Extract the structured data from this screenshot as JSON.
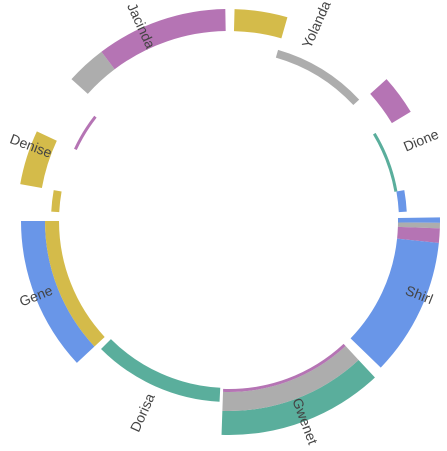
{
  "chart_data": {
    "type": "chord-ring",
    "title": "",
    "colors": {
      "yellow": "#d4bb4a",
      "gray": "#adadad",
      "purple": "#b574b4",
      "teal": "#5aae9c",
      "blue": "#6996e8"
    },
    "nodes": [
      {
        "name": "Yolanda",
        "label": "Yolanda",
        "arc_deg": [
          1.5,
          47
        ],
        "segments": [
          {
            "from_deg": 1.5,
            "to_deg": 16,
            "color": "yellow",
            "layer": "outer"
          },
          {
            "from_deg": 16,
            "to_deg": 47,
            "color": "gray",
            "layer": "inner"
          }
        ]
      },
      {
        "name": "Dione",
        "label": "Dione",
        "arc_deg": [
          48,
          87
        ],
        "segments": [
          {
            "from_deg": 48,
            "to_deg": 59,
            "color": "purple",
            "layer": "outer"
          },
          {
            "from_deg": 59,
            "to_deg": 80,
            "color": "teal",
            "layer": "thin"
          },
          {
            "from_deg": 80,
            "to_deg": 87,
            "color": "blue",
            "layer": "inner"
          }
        ]
      },
      {
        "name": "Shirl",
        "label": "Shirl",
        "arc_deg": [
          89,
          134
        ],
        "segments": [
          {
            "from_deg": 89,
            "to_deg": 90.5,
            "color": "blue",
            "layer": "full"
          },
          {
            "from_deg": 90.5,
            "to_deg": 92,
            "color": "gray",
            "layer": "full"
          },
          {
            "from_deg": 92,
            "to_deg": 96,
            "color": "purple",
            "layer": "full"
          },
          {
            "from_deg": 96,
            "to_deg": 134,
            "color": "blue",
            "layer": "full"
          }
        ]
      },
      {
        "name": "Gwenet",
        "label": "Gwenet",
        "arc_deg": [
          137,
          182
        ],
        "segments": [
          {
            "from_deg": 137,
            "to_deg": 182,
            "color": "teal",
            "layer": "outer"
          },
          {
            "from_deg": 137,
            "to_deg": 182,
            "color": "gray",
            "layer": "mid"
          },
          {
            "from_deg": 137,
            "to_deg": 182,
            "color": "purple",
            "layer": "thin"
          }
        ]
      },
      {
        "name": "Dorisa",
        "label": "Dorisa",
        "arc_deg": [
          183,
          225
        ],
        "segments": [
          {
            "from_deg": 183,
            "to_deg": 225,
            "color": "teal",
            "layer": "tapered"
          }
        ]
      },
      {
        "name": "Gene",
        "label": "Gene",
        "arc_deg": [
          227,
          270
        ],
        "segments": [
          {
            "from_deg": 227,
            "to_deg": 270,
            "color": "blue",
            "layer": "outer"
          },
          {
            "from_deg": 227,
            "to_deg": 270,
            "color": "yellow",
            "layer": "inner"
          }
        ]
      },
      {
        "name": "Denise",
        "label": "Denise",
        "arc_deg": [
          273,
          308
        ],
        "segments": [
          {
            "from_deg": 273,
            "to_deg": 280,
            "color": "yellow",
            "layer": "inner"
          },
          {
            "from_deg": 280,
            "to_deg": 295,
            "color": "yellow",
            "layer": "outer"
          },
          {
            "from_deg": 295,
            "to_deg": 308,
            "color": "purple",
            "layer": "thin"
          }
        ]
      },
      {
        "name": "Jacinda",
        "label": "Jacinda",
        "arc_deg": [
          312,
          359
        ],
        "segments": [
          {
            "from_deg": 312,
            "to_deg": 323,
            "color": "gray",
            "layer": "outer"
          },
          {
            "from_deg": 323,
            "to_deg": 359,
            "color": "purple",
            "layer": "outer"
          }
        ]
      }
    ]
  }
}
